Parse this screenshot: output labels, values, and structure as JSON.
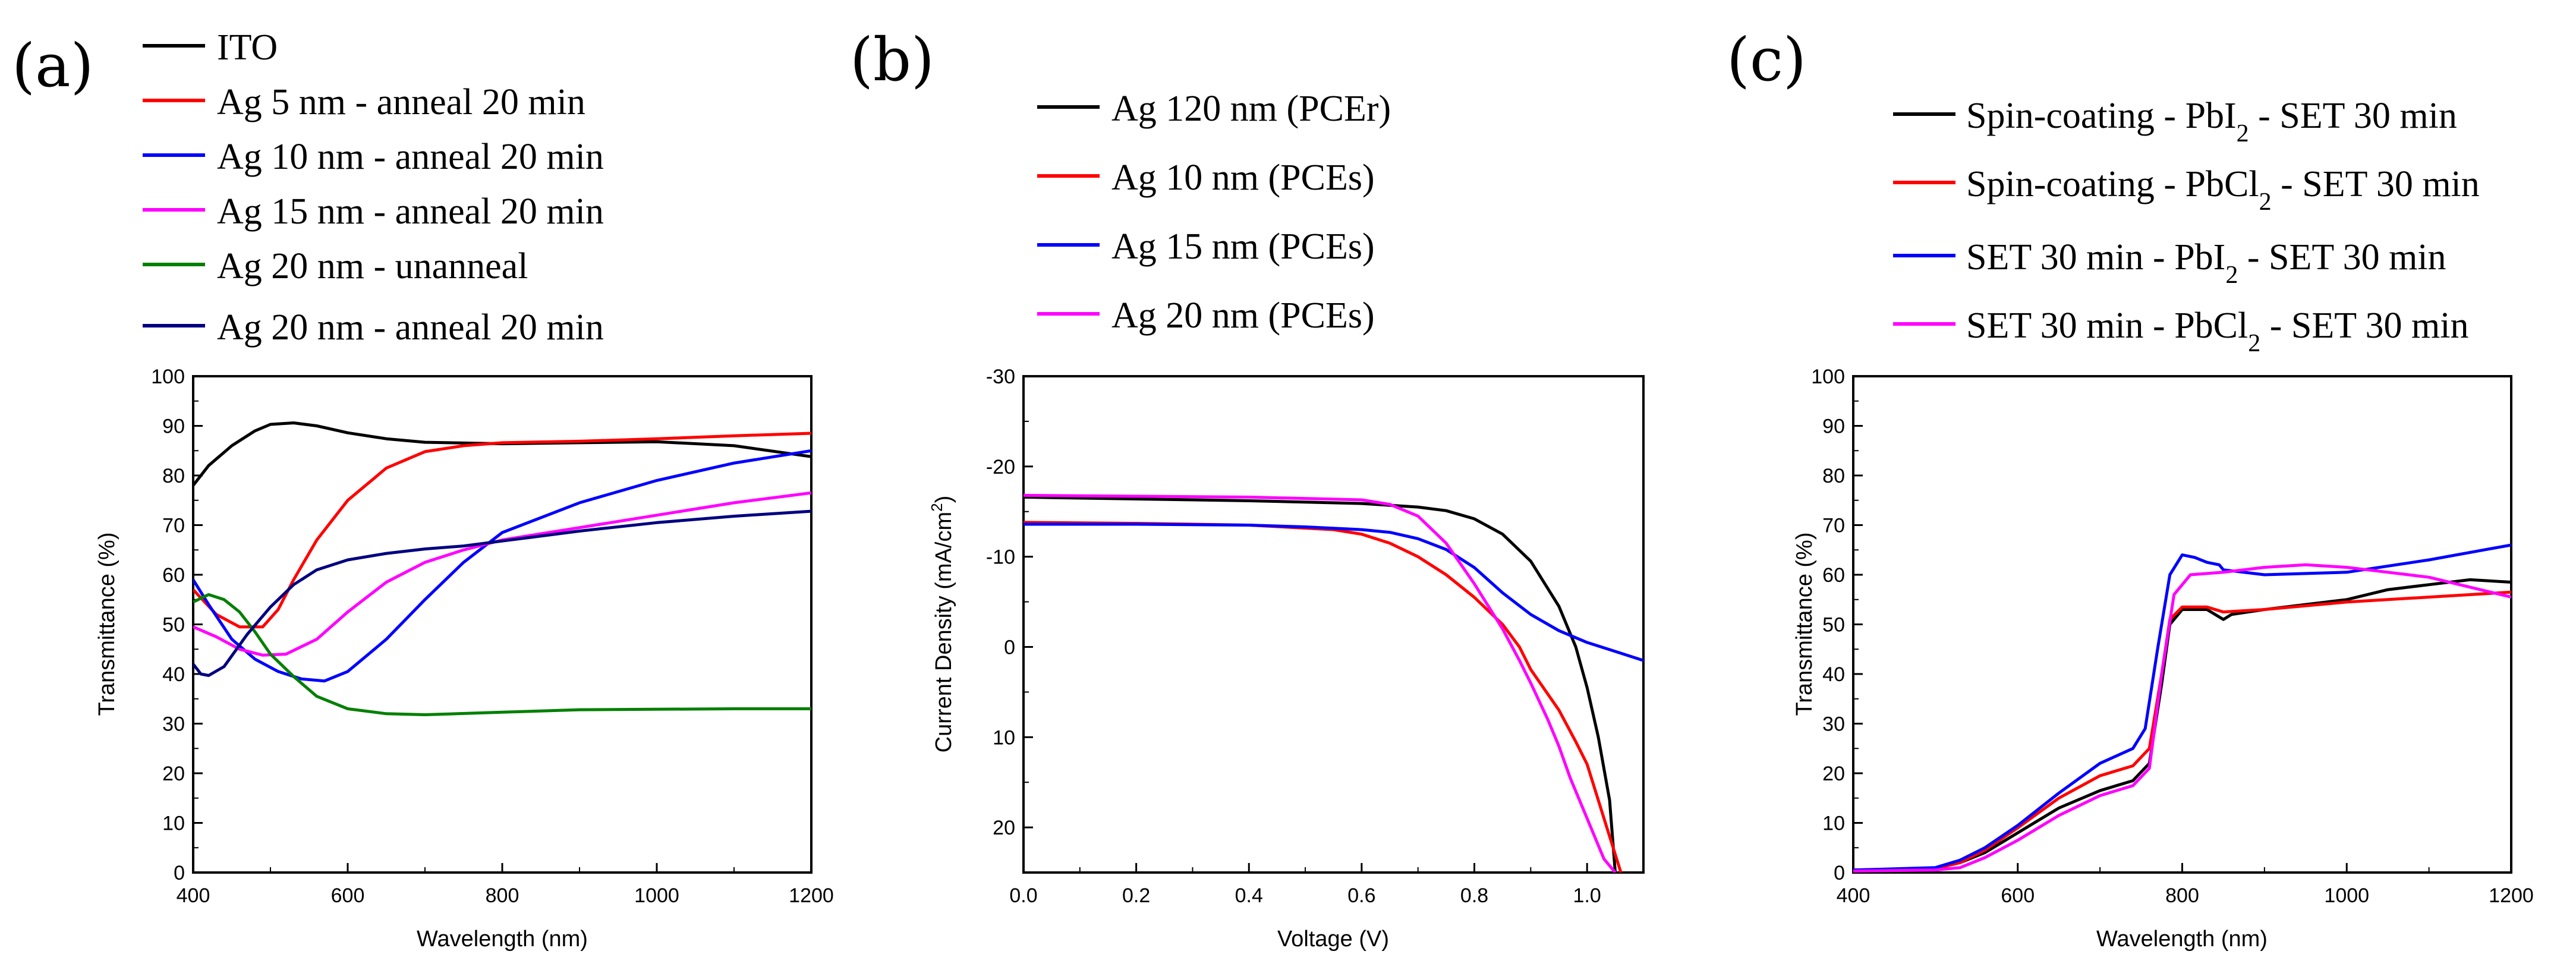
{
  "chart_data": [
    {
      "type": "line",
      "panel_label": "(a)",
      "xlabel": "Wavelength (nm)",
      "ylabel": "Transmittance (%)",
      "xlim": [
        400,
        1200
      ],
      "ylim": [
        0,
        100
      ],
      "xticks": [
        400,
        600,
        800,
        1000,
        1200
      ],
      "yticks": [
        0,
        10,
        20,
        30,
        40,
        50,
        60,
        70,
        80,
        90,
        100
      ],
      "series": [
        {
          "name": "ITO",
          "color": "#000000",
          "x": [
            400,
            420,
            450,
            480,
            500,
            530,
            560,
            600,
            650,
            700,
            800,
            900,
            1000,
            1100,
            1200
          ],
          "y": [
            78,
            82,
            86,
            89,
            90.3,
            90.6,
            90,
            88.6,
            87.4,
            86.7,
            86.4,
            86.6,
            86.8,
            86,
            83.8
          ]
        },
        {
          "name": "Ag 5 nm - anneal 20 min",
          "color": "#ff0000",
          "x": [
            400,
            430,
            460,
            490,
            510,
            530,
            560,
            600,
            650,
            700,
            750,
            800,
            900,
            1000,
            1100,
            1200
          ],
          "y": [
            57,
            52,
            49.5,
            49.5,
            53,
            59,
            67,
            75,
            81.5,
            84.8,
            86,
            86.6,
            86.9,
            87.4,
            88,
            88.5
          ]
        },
        {
          "name": "Ag 10 nm - anneal 20 min",
          "color": "#0000ff",
          "x": [
            400,
            420,
            450,
            480,
            510,
            540,
            570,
            600,
            650,
            700,
            750,
            800,
            900,
            1000,
            1100,
            1200
          ],
          "y": [
            59,
            54,
            47,
            43,
            40.5,
            39,
            38.6,
            40.5,
            47,
            55,
            62.5,
            68.5,
            74.5,
            79,
            82.5,
            85
          ]
        },
        {
          "name": "Ag 15 nm - anneal 20 min",
          "color": "#ff00ff",
          "x": [
            400,
            430,
            460,
            490,
            520,
            560,
            600,
            650,
            700,
            750,
            800,
            900,
            1000,
            1100,
            1200
          ],
          "y": [
            49.5,
            47.5,
            45,
            43.8,
            44,
            47,
            52.5,
            58.5,
            62.5,
            65,
            67,
            69.5,
            72,
            74.5,
            76.5
          ]
        },
        {
          "name": "Ag 20 nm - unanneal",
          "color": "#008000",
          "x": [
            400,
            420,
            440,
            460,
            480,
            500,
            530,
            560,
            600,
            650,
            700,
            800,
            900,
            1000,
            1100,
            1200
          ],
          "y": [
            54.5,
            56,
            55,
            52.5,
            48.5,
            44,
            39.5,
            35.5,
            33,
            32,
            31.8,
            32.3,
            32.8,
            32.9,
            33,
            33
          ]
        },
        {
          "name": "Ag 20 nm - anneal 20 min",
          "color": "#000080",
          "x": [
            400,
            410,
            420,
            440,
            470,
            500,
            530,
            560,
            600,
            650,
            700,
            750,
            800,
            850,
            900,
            1000,
            1100,
            1200
          ],
          "y": [
            42,
            40,
            39.7,
            41.5,
            48,
            53.5,
            58,
            61,
            63,
            64.3,
            65.2,
            65.8,
            66.8,
            67.8,
            68.8,
            70.5,
            71.8,
            72.8
          ]
        }
      ]
    },
    {
      "type": "line",
      "panel_label": "(b)",
      "xlabel": "Voltage (V)",
      "ylabel": "Current Density (mA/cm²)",
      "ylabel_prefix": "Current Density (mA/cm",
      "ylabel_sup": "2",
      "ylabel_suffix": ")",
      "xlim": [
        0.0,
        1.1
      ],
      "ylim": [
        25,
        -30
      ],
      "xticks": [
        0.0,
        0.2,
        0.4,
        0.6,
        0.8,
        1.0
      ],
      "xtick_labels": [
        "0.0",
        "0.2",
        "0.4",
        "0.6",
        "0.8",
        "1.0"
      ],
      "yticks": [
        20,
        10,
        0,
        -10,
        -20,
        -30
      ],
      "series": [
        {
          "name": "Ag 120 nm (PCEr)",
          "color": "#000000",
          "x": [
            0,
            0.2,
            0.4,
            0.6,
            0.7,
            0.75,
            0.8,
            0.85,
            0.9,
            0.95,
            0.98,
            1.0,
            1.02,
            1.04,
            1.05
          ],
          "y": [
            -16.6,
            -16.4,
            -16.2,
            -15.9,
            -15.5,
            -15.1,
            -14.2,
            -12.5,
            -9.5,
            -4.5,
            0,
            4.5,
            10,
            17,
            25
          ]
        },
        {
          "name": "Ag 10 nm (PCEs)",
          "color": "#ff0000",
          "x": [
            0,
            0.2,
            0.4,
            0.55,
            0.6,
            0.65,
            0.7,
            0.75,
            0.8,
            0.85,
            0.88,
            0.9,
            0.95,
            0.98,
            1.0,
            1.03,
            1.06
          ],
          "y": [
            -13.8,
            -13.7,
            -13.5,
            -13,
            -12.5,
            -11.5,
            -10,
            -8,
            -5.5,
            -2.5,
            0,
            2.5,
            7,
            10.5,
            13,
            19,
            25
          ]
        },
        {
          "name": "Ag 15 nm (PCEs)",
          "color": "#0000ff",
          "x": [
            0,
            0.2,
            0.4,
            0.5,
            0.6,
            0.65,
            0.7,
            0.75,
            0.8,
            0.85,
            0.9,
            0.95,
            1.0,
            1.05,
            1.1
          ],
          "y": [
            -13.6,
            -13.6,
            -13.5,
            -13.3,
            -13,
            -12.7,
            -12,
            -10.8,
            -8.8,
            -6,
            -3.6,
            -1.8,
            -0.5,
            0.5,
            1.5
          ]
        },
        {
          "name": "Ag 20 nm (PCEs)",
          "color": "#ff00ff",
          "x": [
            0,
            0.2,
            0.4,
            0.6,
            0.65,
            0.7,
            0.75,
            0.8,
            0.85,
            0.88,
            0.9,
            0.93,
            0.95,
            0.97,
            1.0,
            1.03,
            1.05
          ],
          "y": [
            -16.8,
            -16.7,
            -16.6,
            -16.3,
            -15.8,
            -14.5,
            -11.5,
            -7,
            -2,
            1.5,
            4,
            8,
            11,
            14.5,
            19,
            23.5,
            25
          ]
        }
      ]
    },
    {
      "type": "line",
      "panel_label": "(c)",
      "xlabel": "Wavelength (nm)",
      "ylabel": "Transmittance (%)",
      "xlim": [
        400,
        1200
      ],
      "ylim": [
        0,
        100
      ],
      "xticks": [
        400,
        600,
        800,
        1000,
        1200
      ],
      "yticks": [
        0,
        10,
        20,
        30,
        40,
        50,
        60,
        70,
        80,
        90,
        100
      ],
      "series": [
        {
          "name": "Spin-coating - PbI2 - SET 30 min",
          "legend_prefix": "Spin-coating - PbI",
          "legend_sub": "2",
          "legend_suffix": " - SET 30 min",
          "color": "#000000",
          "x": [
            400,
            500,
            530,
            560,
            600,
            650,
            700,
            740,
            760,
            775,
            785,
            800,
            830,
            850,
            860,
            900,
            950,
            1000,
            1050,
            1100,
            1150,
            1200
          ],
          "y": [
            0.5,
            0.8,
            2,
            4,
            8,
            13,
            16.5,
            18.5,
            22,
            38,
            50,
            53,
            53,
            51,
            52,
            53,
            54,
            55,
            57,
            58,
            59,
            58.5
          ]
        },
        {
          "name": "Spin-coating - PbCl2 - SET 30 min",
          "legend_prefix": "Spin-coating - PbCl",
          "legend_sub": "2",
          "legend_suffix": " - SET 30 min",
          "color": "#ff0000",
          "x": [
            400,
            500,
            530,
            560,
            600,
            650,
            700,
            740,
            760,
            775,
            785,
            800,
            830,
            850,
            900,
            1000,
            1100,
            1200
          ],
          "y": [
            0.5,
            0.8,
            2,
            4.5,
            9,
            15,
            19.5,
            21.5,
            25,
            40,
            51,
            53.5,
            53.5,
            52.5,
            53,
            54.5,
            55.5,
            56.5
          ]
        },
        {
          "name": "SET 30 min - PbI2 - SET 30 min",
          "legend_prefix": "SET 30 min - PbI",
          "legend_sub": "2",
          "legend_suffix": " - SET 30 min",
          "color": "#0000ff",
          "x": [
            400,
            500,
            530,
            560,
            600,
            650,
            700,
            740,
            755,
            770,
            785,
            800,
            815,
            830,
            845,
            850,
            900,
            1000,
            1100,
            1200
          ],
          "y": [
            0.5,
            1,
            2.5,
            5,
            9.5,
            16,
            22,
            25,
            29,
            45,
            60,
            64,
            63.5,
            62.5,
            62,
            61,
            60,
            60.5,
            63,
            66
          ]
        },
        {
          "name": "SET 30 min - PbCl2 - SET 30 min",
          "legend_prefix": "SET 30 min - PbCl",
          "legend_sub": "2",
          "legend_suffix": " - SET 30 min",
          "color": "#ff00ff",
          "x": [
            400,
            500,
            530,
            560,
            600,
            650,
            700,
            740,
            760,
            775,
            790,
            810,
            850,
            900,
            950,
            1000,
            1050,
            1100,
            1150,
            1200
          ],
          "y": [
            0.3,
            0.5,
            1,
            3,
            6.5,
            11.5,
            15.5,
            17.5,
            21,
            40,
            56,
            60,
            60.5,
            61.5,
            62,
            61.5,
            60.5,
            59.5,
            57.5,
            55.5
          ]
        }
      ]
    }
  ]
}
